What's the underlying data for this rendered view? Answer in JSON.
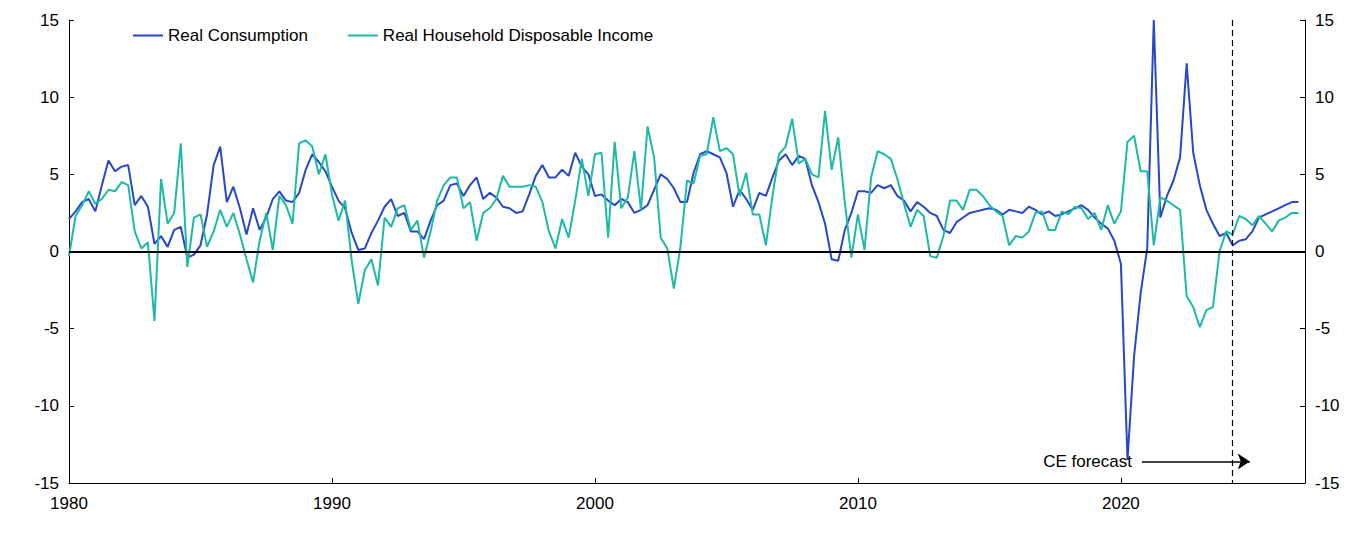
{
  "chart_data": {
    "type": "line",
    "x": [
      1980,
      1980.25,
      1980.5,
      1980.75,
      1981,
      1981.25,
      1981.5,
      1981.75,
      1982,
      1982.25,
      1982.5,
      1982.75,
      1983,
      1983.25,
      1983.5,
      1983.75,
      1984,
      1984.25,
      1984.5,
      1984.75,
      1985,
      1985.25,
      1985.5,
      1985.75,
      1986,
      1986.25,
      1986.5,
      1986.75,
      1987,
      1987.25,
      1987.5,
      1987.75,
      1988,
      1988.25,
      1988.5,
      1988.75,
      1989,
      1989.25,
      1989.5,
      1989.75,
      1990,
      1990.25,
      1990.5,
      1990.75,
      1991,
      1991.25,
      1991.5,
      1991.75,
      1992,
      1992.25,
      1992.5,
      1992.75,
      1993,
      1993.25,
      1993.5,
      1993.75,
      1994,
      1994.25,
      1994.5,
      1994.75,
      1995,
      1995.25,
      1995.5,
      1995.75,
      1996,
      1996.25,
      1996.5,
      1996.75,
      1997,
      1997.25,
      1997.5,
      1997.75,
      1998,
      1998.25,
      1998.5,
      1998.75,
      1999,
      1999.25,
      1999.5,
      1999.75,
      2000,
      2000.25,
      2000.5,
      2000.75,
      2001,
      2001.25,
      2001.5,
      2001.75,
      2002,
      2002.25,
      2002.5,
      2002.75,
      2003,
      2003.25,
      2003.5,
      2003.75,
      2004,
      2004.25,
      2004.5,
      2004.75,
      2005,
      2005.25,
      2005.5,
      2005.75,
      2006,
      2006.25,
      2006.5,
      2006.75,
      2007,
      2007.25,
      2007.5,
      2007.75,
      2008,
      2008.25,
      2008.5,
      2008.75,
      2009,
      2009.25,
      2009.5,
      2009.75,
      2010,
      2010.25,
      2010.5,
      2010.75,
      2011,
      2011.25,
      2011.5,
      2011.75,
      2012,
      2012.25,
      2012.5,
      2012.75,
      2013,
      2013.25,
      2013.5,
      2013.75,
      2014,
      2014.25,
      2014.5,
      2014.75,
      2015,
      2015.25,
      2015.5,
      2015.75,
      2016,
      2016.25,
      2016.5,
      2016.75,
      2017,
      2017.25,
      2017.5,
      2017.75,
      2018,
      2018.25,
      2018.5,
      2018.75,
      2019,
      2019.25,
      2019.5,
      2019.75,
      2020,
      2020.25,
      2020.5,
      2020.75,
      2021,
      2021.25,
      2021.5,
      2021.75,
      2022,
      2022.25,
      2022.5,
      2022.75,
      2023,
      2023.25,
      2023.5,
      2023.75,
      2024,
      2024.25,
      2024.5,
      2024.75,
      2025,
      2025.25,
      2025.5,
      2025.75,
      2026,
      2026.25,
      2026.5,
      2026.75
    ],
    "series": [
      {
        "name": "Real Consumption",
        "color": "#2648c9",
        "values": [
          2.1,
          2.6,
          3.2,
          3.4,
          2.6,
          4.3,
          5.9,
          5.2,
          5.5,
          5.6,
          3.0,
          3.6,
          2.9,
          0.5,
          1.0,
          0.3,
          1.4,
          1.6,
          -0.4,
          -0.2,
          0.4,
          2.4,
          5.6,
          6.8,
          3.2,
          4.2,
          2.8,
          1.1,
          2.8,
          1.4,
          2.2,
          3.4,
          3.9,
          3.3,
          3.2,
          3.8,
          5.3,
          6.3,
          5.8,
          5.2,
          4.2,
          3.3,
          2.8,
          1.2,
          0.1,
          0.2,
          1.2,
          2.0,
          2.9,
          3.4,
          2.3,
          2.5,
          1.3,
          1.3,
          0.8,
          2.0,
          3.0,
          3.3,
          4.3,
          4.4,
          3.6,
          4.3,
          4.8,
          3.4,
          3.8,
          3.5,
          2.9,
          2.8,
          2.5,
          2.6,
          3.7,
          4.9,
          5.6,
          4.8,
          4.8,
          5.3,
          4.9,
          6.4,
          5.5,
          5.0,
          3.6,
          3.7,
          3.3,
          3.0,
          3.4,
          3.2,
          2.5,
          2.7,
          3.0,
          4.0,
          5.0,
          4.7,
          4.1,
          3.2,
          3.2,
          5.1,
          6.3,
          6.5,
          6.3,
          6.1,
          5.1,
          2.9,
          4.0,
          3.4,
          2.7,
          3.8,
          3.6,
          4.8,
          5.9,
          6.3,
          5.6,
          6.2,
          6.0,
          4.3,
          3.2,
          1.8,
          -0.5,
          -0.6,
          1.4,
          2.5,
          3.9,
          3.9,
          3.8,
          4.3,
          4.1,
          4.3,
          3.6,
          3.3,
          2.6,
          3.2,
          2.9,
          2.5,
          2.3,
          1.4,
          1.2,
          1.9,
          2.2,
          2.5,
          2.6,
          2.7,
          2.8,
          2.7,
          2.4,
          2.7,
          2.6,
          2.5,
          2.9,
          2.7,
          2.4,
          2.6,
          2.3,
          2.4,
          2.6,
          2.8,
          3.0,
          2.7,
          2.2,
          1.8,
          1.5,
          0.7,
          -0.8,
          -13.5,
          -6.8,
          -2.7,
          0.2,
          15.0,
          2.2,
          3.6,
          4.6,
          6.1,
          12.2,
          6.4,
          4.3,
          2.7,
          1.8,
          1.0,
          1.2,
          0.4,
          0.7,
          0.8,
          1.3,
          2.2,
          2.4,
          2.6,
          2.8,
          3.0,
          3.2,
          3.2
        ]
      },
      {
        "name": "Real Household Disposable Income",
        "color": "#1dbaa6",
        "values": [
          -0.3,
          2.3,
          3.0,
          3.9,
          3.1,
          3.4,
          4.0,
          3.9,
          4.5,
          4.3,
          1.3,
          0.2,
          0.6,
          -4.5,
          4.7,
          1.8,
          2.5,
          7.0,
          -1.0,
          2.2,
          2.4,
          0.3,
          1.3,
          2.7,
          1.6,
          2.5,
          1.1,
          -0.5,
          -2.0,
          0.7,
          2.5,
          0.1,
          3.6,
          3.0,
          1.8,
          7.0,
          7.2,
          6.8,
          5.0,
          6.3,
          3.7,
          2.0,
          3.3,
          -0.6,
          -3.4,
          -1.2,
          -0.5,
          -2.2,
          2.2,
          1.6,
          2.8,
          3.0,
          1.4,
          2.0,
          -0.4,
          1.3,
          3.3,
          4.3,
          4.8,
          4.8,
          2.8,
          3.2,
          0.7,
          2.5,
          2.8,
          3.4,
          4.9,
          4.2,
          4.2,
          4.2,
          4.3,
          4.2,
          3.2,
          1.3,
          0.2,
          2.1,
          0.9,
          3.3,
          6.0,
          3.6,
          6.3,
          6.4,
          0.9,
          7.1,
          2.8,
          3.5,
          6.5,
          2.7,
          8.1,
          6.1,
          0.9,
          0.2,
          -2.4,
          0.3,
          4.6,
          4.4,
          6.2,
          6.3,
          8.7,
          6.5,
          6.7,
          6.3,
          3.6,
          5.1,
          2.4,
          2.4,
          0.4,
          3.6,
          6.3,
          6.8,
          8.6,
          5.7,
          6.0,
          5.0,
          4.8,
          9.1,
          5.3,
          7.4,
          3.2,
          -0.4,
          2.4,
          0.1,
          4.8,
          6.5,
          6.3,
          6.0,
          4.7,
          3.1,
          1.6,
          2.7,
          2.3,
          -0.3,
          -0.4,
          1.0,
          3.3,
          3.3,
          2.7,
          4.0,
          4.0,
          3.6,
          3.0,
          2.6,
          2.3,
          0.4,
          1.0,
          0.9,
          1.3,
          2.5,
          2.6,
          1.4,
          1.4,
          2.6,
          2.4,
          2.9,
          2.8,
          2.1,
          2.5,
          1.4,
          3.0,
          1.8,
          2.6,
          7.1,
          7.5,
          5.2,
          5.2,
          0.4,
          3.5,
          3.3,
          3.0,
          2.7,
          -2.9,
          -3.6,
          -4.9,
          -3.8,
          -3.6,
          0.0,
          1.3,
          1.1,
          2.3,
          2.1,
          1.7,
          2.3,
          1.8,
          1.3,
          2.0,
          2.2,
          2.5,
          2.5
        ]
      }
    ],
    "xlim": [
      1980,
      2027
    ],
    "xticks": [
      1980,
      1990,
      2000,
      2010,
      2020
    ],
    "ylim": [
      -15,
      15
    ],
    "yticks": [
      -15,
      -10,
      -5,
      0,
      5,
      10,
      15
    ],
    "y2lim": [
      -15,
      15
    ],
    "y2ticks": [
      -15,
      -10,
      -5,
      0,
      5,
      10,
      15
    ],
    "forecast_start": 2024.25,
    "annotation": {
      "text": "CE forecast",
      "x": [
        2020.8,
        2024.9
      ],
      "y": -13.6
    },
    "legend": "upper left",
    "grid": false
  }
}
